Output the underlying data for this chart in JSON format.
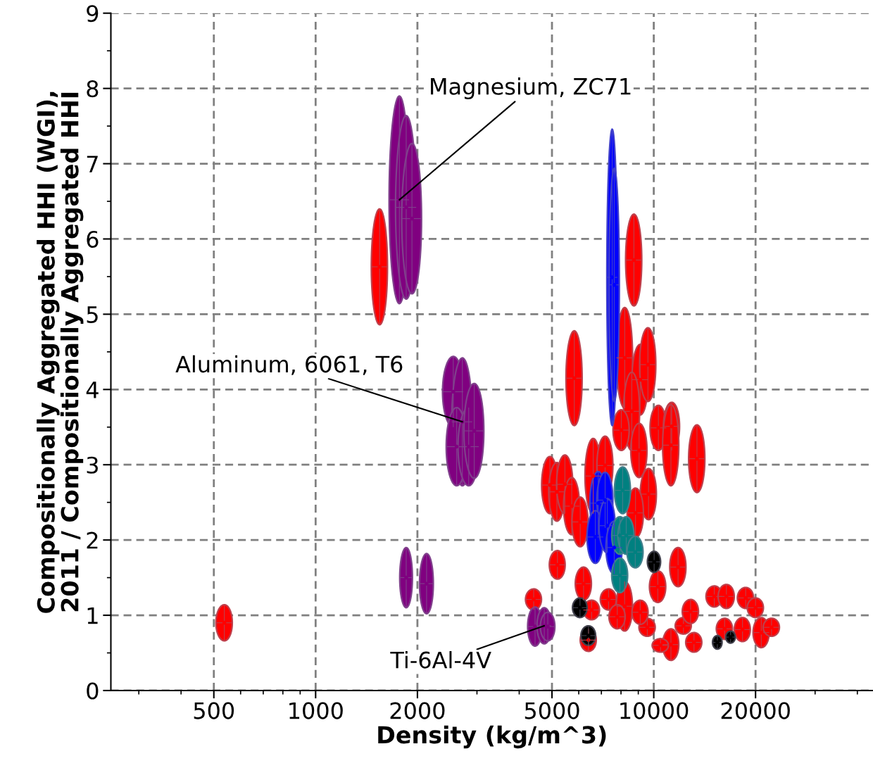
{
  "chart_data": {
    "type": "scatter",
    "xlabel": "Density (kg/m^3)",
    "ylabel": "Compositionally Aggregated HHI (WGI),\n2011 / Compositionally Aggregated HHI",
    "log": "x",
    "xlim": [
      248,
      44500
    ],
    "xticks": [
      500,
      1000,
      2000,
      5000,
      10000,
      20000
    ],
    "ylim": [
      0,
      9
    ],
    "yticks": [
      0,
      1,
      2,
      3,
      4,
      5,
      6,
      7,
      8,
      9
    ],
    "grid": true,
    "series": [
      {
        "color": "#ff0000",
        "x": [
          537,
          1546,
          5820,
          8735,
          8207,
          9117,
          9610,
          8610,
          8017,
          10320,
          11300,
          13420,
          11240,
          9050,
          9650,
          8830,
          11800,
          15100,
          16400,
          18700,
          20000,
          20800,
          22300,
          18300,
          16200,
          13150,
          11240,
          10470,
          12240,
          12850,
          10280,
          9570,
          4930,
          5170,
          5460,
          5720,
          6060,
          6620,
          7180,
          5190,
          6200,
          4415,
          8200,
          7350,
          6550,
          7800,
          9120,
          6410
        ],
        "values": [
          0.9,
          5.63,
          4.15,
          5.72,
          4.42,
          4.13,
          4.33,
          3.71,
          3.46,
          3.49,
          3.51,
          3.08,
          3.26,
          3.19,
          2.61,
          2.36,
          1.64,
          1.25,
          1.25,
          1.23,
          1.1,
          0.77,
          0.84,
          0.81,
          0.82,
          0.64,
          0.61,
          0.6,
          0.86,
          1.05,
          1.38,
          0.84,
          2.73,
          2.64,
          2.74,
          2.45,
          2.24,
          2.85,
          2.99,
          1.67,
          1.42,
          1.21,
          1.12,
          1.21,
          1.07,
          0.98,
          1.04,
          0.67
        ],
        "xerrors": [
          30,
          85,
          320,
          480,
          450,
          500,
          530,
          470,
          440,
          570,
          620,
          740,
          620,
          500,
          530,
          490,
          650,
          830,
          900,
          1030,
          1100,
          1140,
          1230,
          1000,
          890,
          720,
          620,
          580,
          670,
          710,
          570,
          530,
          270,
          280,
          300,
          310,
          330,
          360,
          390,
          280,
          340,
          240,
          450,
          400,
          360,
          430,
          500,
          350
        ],
        "errors": [
          0.24,
          0.77,
          0.63,
          0.61,
          0.67,
          0.47,
          0.49,
          0.52,
          0.27,
          0.3,
          0.32,
          0.45,
          0.54,
          0.36,
          0.34,
          0.33,
          0.26,
          0.14,
          0.16,
          0.14,
          0.13,
          0.2,
          0.12,
          0.16,
          0.14,
          0.13,
          0.21,
          0.09,
          0.11,
          0.16,
          0.21,
          0.12,
          0.38,
          0.39,
          0.39,
          0.38,
          0.33,
          0.5,
          0.39,
          0.19,
          0.22,
          0.14,
          0.33,
          0.14,
          0.13,
          0.16,
          0.16,
          0.15
        ]
      },
      {
        "color": "#800080",
        "x": [
          1769,
          1853,
          1927,
          2553,
          2716,
          2613,
          2836,
          2944,
          1853,
          2129,
          4456,
          4744,
          4860
        ],
        "values": [
          6.52,
          6.42,
          6.27,
          3.97,
          3.57,
          3.24,
          3.24,
          3.45,
          1.5,
          1.42,
          0.85,
          0.86,
          0.85
        ],
        "xerrors": [
          120,
          130,
          130,
          180,
          190,
          180,
          200,
          200,
          80,
          100,
          220,
          230,
          240
        ],
        "errors": [
          1.38,
          1.22,
          1.0,
          0.47,
          0.85,
          0.52,
          0.52,
          0.63,
          0.4,
          0.4,
          0.26,
          0.24,
          0.19
        ]
      },
      {
        "color": "#0000ff",
        "x": [
          7534,
          7640,
          6852,
          7180,
          6718,
          7287,
          7640
        ],
        "values": [
          5.49,
          5.39,
          2.49,
          2.53,
          2.04,
          2.19,
          1.9
        ],
        "xerrors": [
          270,
          270,
          380,
          390,
          370,
          400,
          420
        ],
        "errors": [
          1.97,
          1.55,
          0.42,
          0.37,
          0.35,
          0.36,
          0.35
        ]
      },
      {
        "color": "#008080",
        "x": [
          8090,
          7940,
          8290,
          8816,
          7940
        ],
        "values": [
          2.66,
          2.06,
          2.06,
          1.84,
          1.53
        ],
        "xerrors": [
          440,
          430,
          450,
          480,
          430
        ],
        "errors": [
          0.31,
          0.25,
          0.25,
          0.21,
          0.23
        ]
      },
      {
        "color": "#000000",
        "x": [
          6050,
          6410,
          10025,
          15420,
          16870
        ],
        "values": [
          1.1,
          0.73,
          1.71,
          0.64,
          0.71
        ],
        "xerrors": [
          300,
          320,
          450,
          500,
          550
        ],
        "errors": [
          0.13,
          0.13,
          0.14,
          0.09,
          0.08
        ]
      }
    ],
    "annotations": [
      {
        "text": "Magnesium, ZC71",
        "x": 1769,
        "y": 6.52
      },
      {
        "text": "Aluminum, 6061, T6",
        "x": 2716,
        "y": 3.57
      },
      {
        "text": "Ti-6Al-4V",
        "x": 4744,
        "y": 0.86
      }
    ]
  }
}
